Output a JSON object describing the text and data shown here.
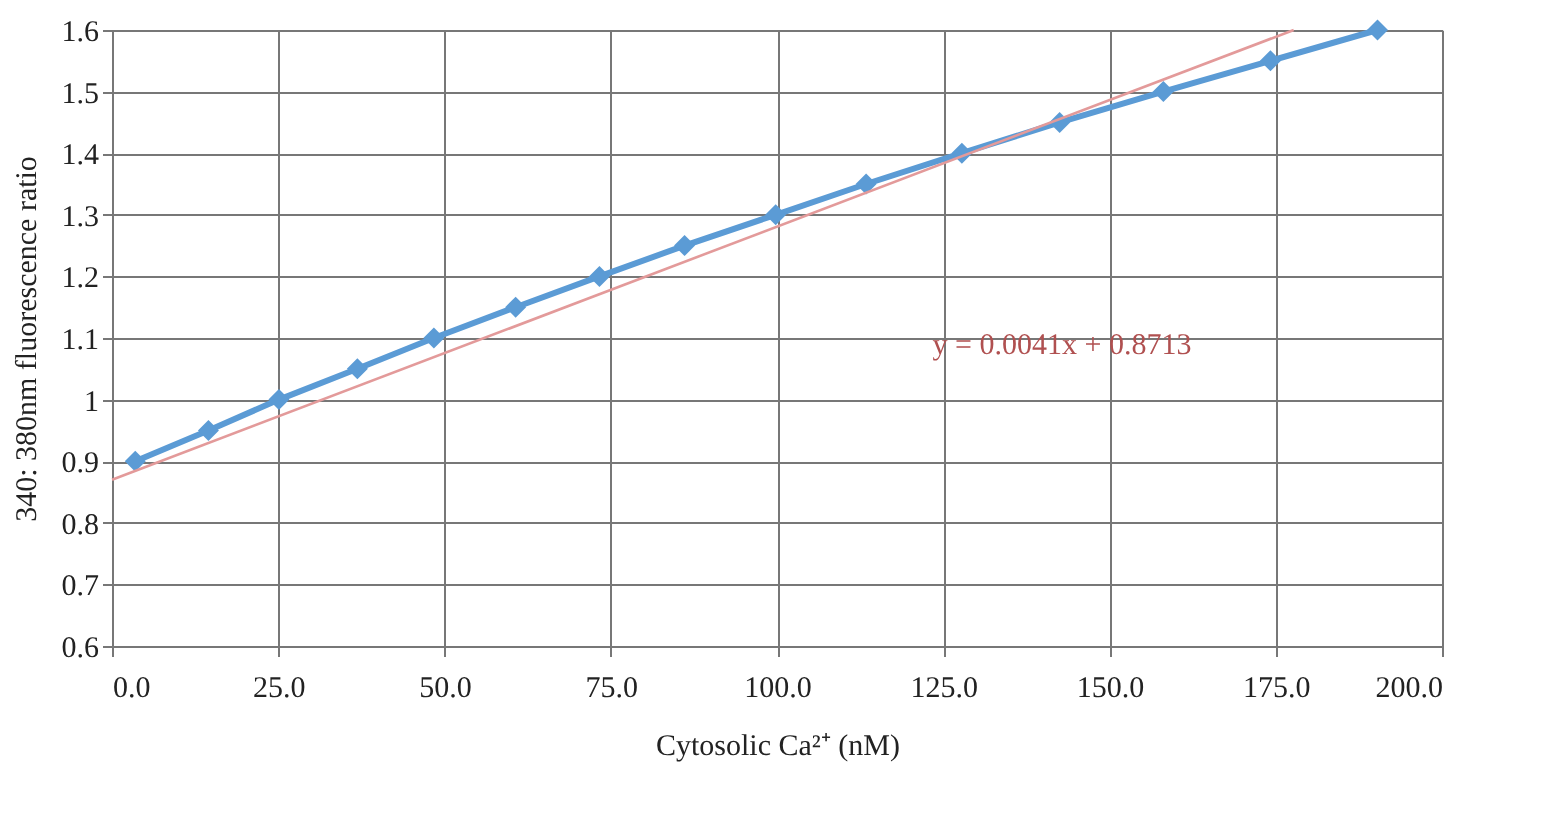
{
  "chart_data": {
    "type": "line",
    "xlabel": "Cytosolic Ca²⁺ (nM)",
    "ylabel": "340: 380nm fluorescence ratio",
    "x": [
      3.5,
      14.5,
      25.1,
      36.9,
      48.4,
      60.7,
      73.3,
      86.1,
      99.8,
      113.4,
      127.8,
      142.5,
      158.1,
      174.2,
      190.3
    ],
    "series": [
      {
        "color": "#5b9bd5",
        "marker": "diamond",
        "line_style": "solid",
        "values": [
          0.9,
          0.95,
          1.0,
          1.05,
          1.1,
          1.15,
          1.2,
          1.25,
          1.3,
          1.35,
          1.4,
          1.45,
          1.5,
          1.55,
          1.6
        ]
      },
      {
        "type": "line",
        "color": "#e39a9a",
        "marker": "none",
        "line_style": "solid",
        "x": [
          0,
          177.7
        ],
        "values": [
          0.87,
          1.6
        ]
      }
    ],
    "annotations": [
      "y = 0.0041x + 0.8713"
    ],
    "xlim": [
      0,
      200
    ],
    "ylim": [
      0.6,
      1.6
    ],
    "xticks": [
      {
        "value": 0,
        "label": "0.0"
      },
      {
        "value": 25,
        "label": "25.0"
      },
      {
        "value": 50,
        "label": "50.0"
      },
      {
        "value": 75,
        "label": "75.0"
      },
      {
        "value": 100,
        "label": "100.0"
      },
      {
        "value": 125,
        "label": "125.0"
      },
      {
        "value": 150,
        "label": "150.0"
      },
      {
        "value": 175,
        "label": "175.0"
      },
      {
        "value": 200,
        "label": "200.0"
      }
    ],
    "yticks": [
      0.6,
      0.7,
      0.8,
      0.9,
      1,
      1.1,
      1.2,
      1.3,
      1.4,
      1.5,
      1.6
    ],
    "grid": true
  }
}
